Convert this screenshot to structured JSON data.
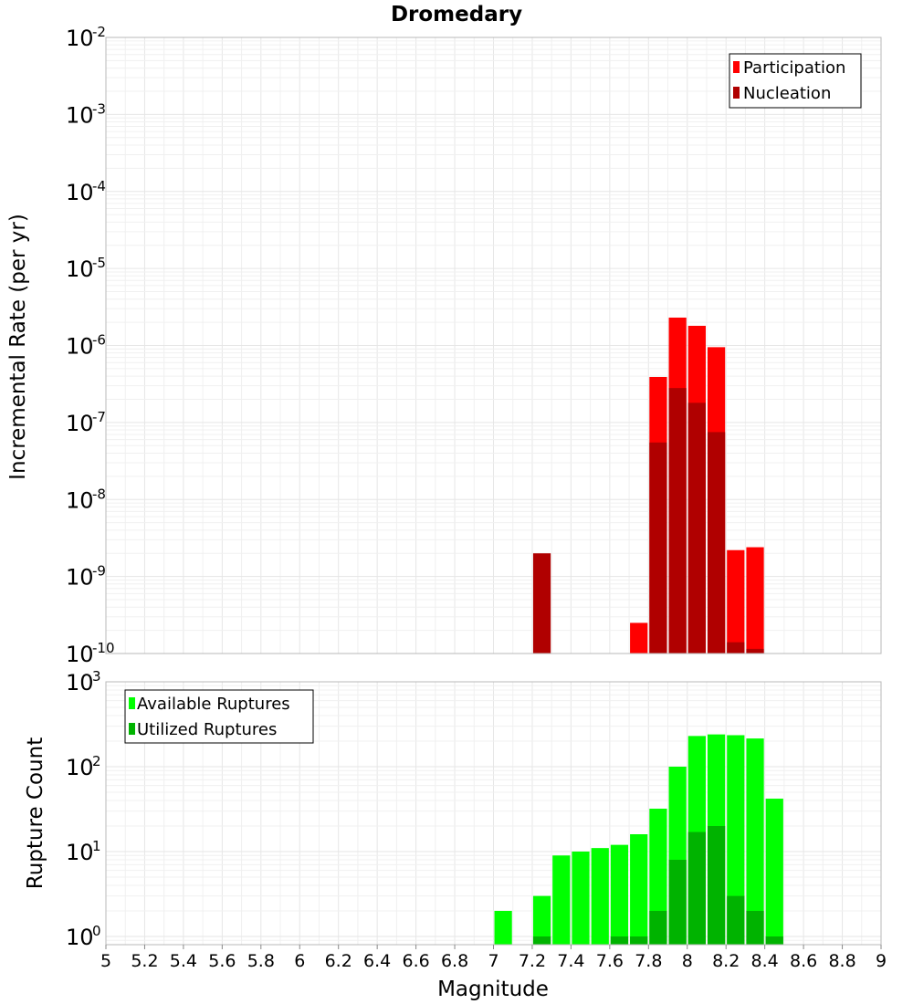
{
  "chart_data": [
    {
      "type": "bar",
      "title": "Dromedary",
      "xlabel": "",
      "ylabel": "Incremental Rate (per yr)",
      "yscale": "log",
      "ylim": [
        1e-10,
        0.01
      ],
      "xlim": [
        5,
        9
      ],
      "y_tick_exponents": [
        "-10",
        "-9",
        "-8",
        "-7",
        "-6",
        "-5",
        "-4",
        "-3",
        "-2"
      ],
      "y_tick_base": "10",
      "legend": "top-right",
      "grid": true,
      "bar_width": 0.1,
      "series": [
        {
          "name": "Participation",
          "color": "#ff0000",
          "x": [
            7.75,
            7.85,
            7.95,
            8.05,
            8.15,
            8.25,
            8.35
          ],
          "values": [
            2.5e-10,
            3.9e-07,
            2.3e-06,
            1.8e-06,
            9.5e-07,
            2.2e-09,
            2.4e-09
          ]
        },
        {
          "name": "Nucleation",
          "color": "#b00000",
          "x": [
            7.25,
            7.85,
            7.95,
            8.05,
            8.15,
            8.25,
            8.35
          ],
          "values": [
            2e-09,
            5.5e-08,
            2.8e-07,
            1.8e-07,
            7.5e-08,
            1.4e-10,
            1.15e-10
          ]
        }
      ]
    },
    {
      "type": "bar",
      "title": "",
      "xlabel": "Magnitude",
      "ylabel": "Rupture Count",
      "yscale": "log",
      "ylim": [
        0.8,
        1000
      ],
      "xlim": [
        5,
        9
      ],
      "x_ticks": [
        "5",
        "5.2",
        "5.4",
        "5.6",
        "5.8",
        "6",
        "6.2",
        "6.4",
        "6.6",
        "6.8",
        "7",
        "7.2",
        "7.4",
        "7.6",
        "7.8",
        "8",
        "8.2",
        "8.4",
        "8.6",
        "8.8",
        "9"
      ],
      "y_tick_exponents": [
        "0",
        "1",
        "2",
        "3"
      ],
      "y_tick_base": "10",
      "legend": "top-left",
      "grid": true,
      "bar_width": 0.1,
      "series": [
        {
          "name": "Available Ruptures",
          "color": "#00ff00",
          "x": [
            7.05,
            7.25,
            7.35,
            7.45,
            7.55,
            7.65,
            7.75,
            7.85,
            7.95,
            8.05,
            8.15,
            8.25,
            8.35,
            8.45
          ],
          "values": [
            2,
            3,
            9,
            10,
            11,
            12,
            16,
            32,
            100,
            230,
            240,
            235,
            215,
            42
          ]
        },
        {
          "name": "Utilized Ruptures",
          "color": "#00b300",
          "x": [
            7.25,
            7.65,
            7.75,
            7.85,
            7.95,
            8.05,
            8.15,
            8.25,
            8.35,
            8.45
          ],
          "values": [
            1,
            1,
            1,
            2,
            8,
            17,
            20,
            3,
            2,
            1
          ]
        }
      ]
    }
  ]
}
